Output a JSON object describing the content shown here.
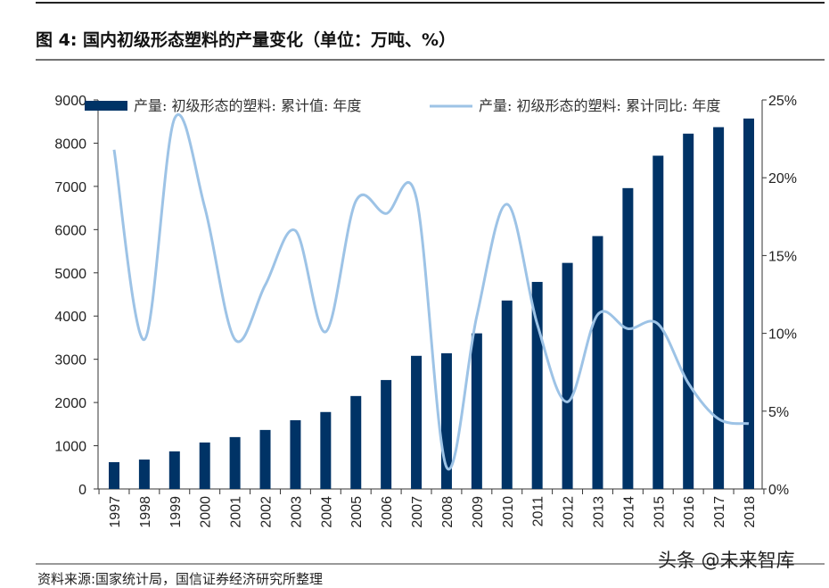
{
  "header": {
    "title": "图 4:  国内初级形态塑料的产量变化（单位：万吨、%）"
  },
  "footer": {
    "source": "资料来源:国家统计局，国信证券经济研究所整理",
    "watermark": "头条 @未来智库"
  },
  "chart_data": {
    "type": "bar+line",
    "categories": [
      "1997",
      "1998",
      "1999",
      "2000",
      "2001",
      "2002",
      "2003",
      "2004",
      "2005",
      "2006",
      "2007",
      "2008",
      "2009",
      "2010",
      "2011",
      "2012",
      "2013",
      "2014",
      "2015",
      "2016",
      "2017",
      "2018"
    ],
    "series": [
      {
        "name": "产量: 初级形态的塑料: 累计值: 年度",
        "type": "bar",
        "axis": "left",
        "color": "#003366",
        "values": [
          620,
          680,
          870,
          1075,
          1200,
          1365,
          1590,
          1780,
          2150,
          2520,
          3080,
          3140,
          3600,
          4360,
          4790,
          5230,
          5850,
          6960,
          7710,
          8220,
          8370,
          8570
        ]
      },
      {
        "name": "产量: 初级形态的塑料: 累计同比: 年度",
        "type": "line",
        "axis": "right",
        "color": "#9dc3e6",
        "values": [
          21.8,
          9.6,
          23.8,
          18.1,
          9.6,
          13.1,
          16.6,
          10.1,
          18.5,
          17.7,
          18.7,
          1.4,
          11.1,
          18.3,
          10.6,
          5.6,
          11.2,
          10.3,
          10.6,
          6.8,
          4.5,
          4.2
        ]
      }
    ],
    "left_axis": {
      "range": [
        0,
        9000
      ],
      "ticks": [
        "0",
        "1000",
        "2000",
        "3000",
        "4000",
        "5000",
        "6000",
        "7000",
        "8000",
        "9000"
      ]
    },
    "right_axis": {
      "range": [
        0,
        25
      ],
      "ticks": [
        "0%",
        "5%",
        "10%",
        "15%",
        "20%",
        "25%"
      ]
    },
    "legend_placement": "top",
    "grid": false
  }
}
